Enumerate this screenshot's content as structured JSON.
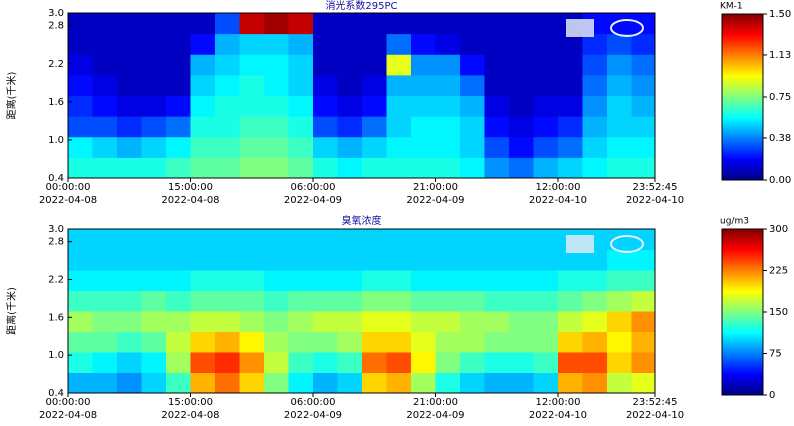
{
  "chart_data": [
    {
      "type": "heatmap",
      "title": "消光系数295PC",
      "ylabel": "距离(千米)",
      "zlabel": "KM-1",
      "colormap": "jet",
      "xlim": [
        0,
        71.879
      ],
      "xticks": [
        {
          "value": 0,
          "label": "00:00:00 2022-04-08"
        },
        {
          "value": 15,
          "label": "15:00:00 2022-04-08"
        },
        {
          "value": 30,
          "label": "06:00:00 2022-04-09"
        },
        {
          "value": 45,
          "label": "21:00:00 2022-04-09"
        },
        {
          "value": 60,
          "label": "12:00:00 2022-04-10"
        },
        {
          "value": 71.879,
          "label": "23:52:45 2022-04-10"
        }
      ],
      "ylim": [
        0.4,
        3.0
      ],
      "yticks": [
        0.4,
        {
          "value": 1.0,
          "label": "1.0"
        },
        1.6,
        2.2,
        2.8,
        {
          "value": 3.0,
          "label": "3.0"
        }
      ],
      "zlim": [
        0,
        1.5
      ],
      "zticks": [
        {
          "value": 0,
          "label": "0.00"
        },
        {
          "value": 0.38,
          "label": "0.38"
        },
        {
          "value": 0.75,
          "label": "0.75"
        },
        {
          "value": 1.13,
          "label": "1.13"
        },
        {
          "value": 1.5,
          "label": "1.50"
        }
      ],
      "x_bins": [
        0,
        3,
        6,
        9,
        12,
        15,
        18,
        21,
        24,
        27,
        30,
        33,
        36,
        39,
        42,
        45,
        48,
        51,
        54,
        57,
        60,
        63,
        66,
        69,
        71.879
      ],
      "y_bins": [
        0.4,
        0.725,
        1.05,
        1.375,
        1.7,
        2.025,
        2.35,
        2.675,
        3.0
      ],
      "z": [
        [
          0.6,
          0.55,
          0.3,
          0.25,
          0.2,
          0.15,
          0.1,
          0.1
        ],
        [
          0.6,
          0.5,
          0.3,
          0.2,
          0.15,
          0.1,
          0.1,
          0.1
        ],
        [
          0.6,
          0.45,
          0.25,
          0.15,
          0.1,
          0.1,
          0.1,
          0.1
        ],
        [
          0.6,
          0.5,
          0.3,
          0.15,
          0.1,
          0.1,
          0.1,
          0.1
        ],
        [
          0.65,
          0.55,
          0.35,
          0.2,
          0.1,
          0.1,
          0.1,
          0.1
        ],
        [
          0.7,
          0.65,
          0.6,
          0.55,
          0.5,
          0.45,
          0.2,
          0.1
        ],
        [
          0.7,
          0.65,
          0.6,
          0.6,
          0.55,
          0.5,
          0.45,
          0.3
        ],
        [
          0.75,
          0.7,
          0.65,
          0.6,
          0.6,
          0.55,
          0.5,
          1.4
        ],
        [
          0.75,
          0.7,
          0.65,
          0.6,
          0.55,
          0.55,
          0.5,
          1.45
        ],
        [
          0.7,
          0.65,
          0.6,
          0.55,
          0.5,
          0.5,
          0.45,
          1.4
        ],
        [
          0.6,
          0.5,
          0.3,
          0.2,
          0.15,
          0.1,
          0.1,
          0.1
        ],
        [
          0.55,
          0.45,
          0.25,
          0.15,
          0.1,
          0.1,
          0.1,
          0.1
        ],
        [
          0.6,
          0.5,
          0.35,
          0.2,
          0.15,
          0.1,
          0.1,
          0.1
        ],
        [
          0.6,
          0.55,
          0.5,
          0.5,
          0.45,
          0.9,
          0.35,
          0.1
        ],
        [
          0.6,
          0.55,
          0.55,
          0.5,
          0.45,
          0.4,
          0.2,
          0.1
        ],
        [
          0.6,
          0.55,
          0.55,
          0.5,
          0.45,
          0.4,
          0.15,
          0.1
        ],
        [
          0.55,
          0.5,
          0.5,
          0.45,
          0.35,
          0.2,
          0.1,
          0.1
        ],
        [
          0.4,
          0.3,
          0.2,
          0.15,
          0.1,
          0.1,
          0.1,
          0.1
        ],
        [
          0.35,
          0.2,
          0.15,
          0.1,
          0.1,
          0.1,
          0.1,
          0.1
        ],
        [
          0.45,
          0.3,
          0.2,
          0.15,
          0.1,
          0.1,
          0.1,
          0.1
        ],
        [
          0.5,
          0.35,
          0.25,
          0.15,
          0.1,
          0.1,
          0.1,
          0.1
        ],
        [
          0.55,
          0.5,
          0.45,
          0.4,
          0.35,
          0.3,
          0.25,
          0.2
        ],
        [
          0.6,
          0.55,
          0.5,
          0.5,
          0.45,
          0.4,
          0.3,
          0.2
        ],
        [
          0.6,
          0.55,
          0.5,
          0.45,
          0.4,
          0.35,
          0.25,
          0.2
        ]
      ]
    },
    {
      "type": "heatmap",
      "title": "臭氧浓度",
      "ylabel": "距离(千米)",
      "zlabel": "ug/m3",
      "colormap": "jet",
      "xlim": [
        0,
        71.879
      ],
      "xticks": [
        {
          "value": 0,
          "label": "00:00:00 2022-04-08"
        },
        {
          "value": 15,
          "label": "15:00:00 2022-04-08"
        },
        {
          "value": 30,
          "label": "06:00:00 2022-04-09"
        },
        {
          "value": 45,
          "label": "21:00:00 2022-04-09"
        },
        {
          "value": 60,
          "label": "12:00:00 2022-04-10"
        },
        {
          "value": 71.879,
          "label": "23:52:45 2022-04-10"
        }
      ],
      "ylim": [
        0.4,
        3.0
      ],
      "yticks": [
        0.4,
        {
          "value": 1.0,
          "label": "1.0"
        },
        1.6,
        2.2,
        2.8,
        {
          "value": 3.0,
          "label": "3.0"
        }
      ],
      "zlim": [
        0,
        300
      ],
      "zticks": [
        0,
        75,
        150,
        225,
        300
      ],
      "x_bins": [
        0,
        3,
        6,
        9,
        12,
        15,
        18,
        21,
        24,
        27,
        30,
        33,
        36,
        39,
        42,
        45,
        48,
        51,
        54,
        57,
        60,
        63,
        66,
        69,
        71.879
      ],
      "y_bins": [
        0.4,
        0.725,
        1.05,
        1.375,
        1.7,
        2.025,
        2.35,
        2.675,
        3.0
      ],
      "z": [
        [
          90,
          120,
          140,
          160,
          130,
          110,
          100,
          100
        ],
        [
          90,
          110,
          140,
          150,
          130,
          110,
          100,
          100
        ],
        [
          80,
          100,
          130,
          150,
          130,
          110,
          100,
          100
        ],
        [
          100,
          110,
          140,
          160,
          140,
          110,
          100,
          100
        ],
        [
          130,
          160,
          170,
          160,
          130,
          110,
          100,
          100
        ],
        [
          210,
          240,
          200,
          170,
          140,
          120,
          100,
          100
        ],
        [
          230,
          250,
          210,
          170,
          140,
          120,
          100,
          100
        ],
        [
          200,
          220,
          190,
          160,
          140,
          120,
          100,
          100
        ],
        [
          150,
          170,
          160,
          150,
          130,
          110,
          100,
          100
        ],
        [
          110,
          130,
          150,
          160,
          140,
          110,
          100,
          100
        ],
        [
          90,
          120,
          150,
          170,
          140,
          110,
          100,
          100
        ],
        [
          100,
          130,
          160,
          170,
          140,
          110,
          100,
          100
        ],
        [
          200,
          230,
          200,
          180,
          150,
          120,
          100,
          100
        ],
        [
          210,
          240,
          200,
          180,
          150,
          120,
          100,
          100
        ],
        [
          160,
          190,
          180,
          170,
          140,
          110,
          100,
          100
        ],
        [
          120,
          150,
          160,
          170,
          140,
          110,
          100,
          100
        ],
        [
          100,
          130,
          160,
          160,
          140,
          110,
          100,
          100
        ],
        [
          90,
          120,
          150,
          160,
          130,
          110,
          100,
          100
        ],
        [
          90,
          120,
          150,
          150,
          130,
          110,
          100,
          100
        ],
        [
          100,
          130,
          150,
          150,
          130,
          110,
          100,
          100
        ],
        [
          210,
          240,
          200,
          170,
          140,
          120,
          100,
          100
        ],
        [
          220,
          240,
          210,
          180,
          150,
          120,
          100,
          100
        ],
        [
          170,
          200,
          190,
          200,
          160,
          130,
          110,
          100
        ],
        [
          180,
          220,
          210,
          220,
          170,
          130,
          110,
          100
        ]
      ]
    }
  ]
}
